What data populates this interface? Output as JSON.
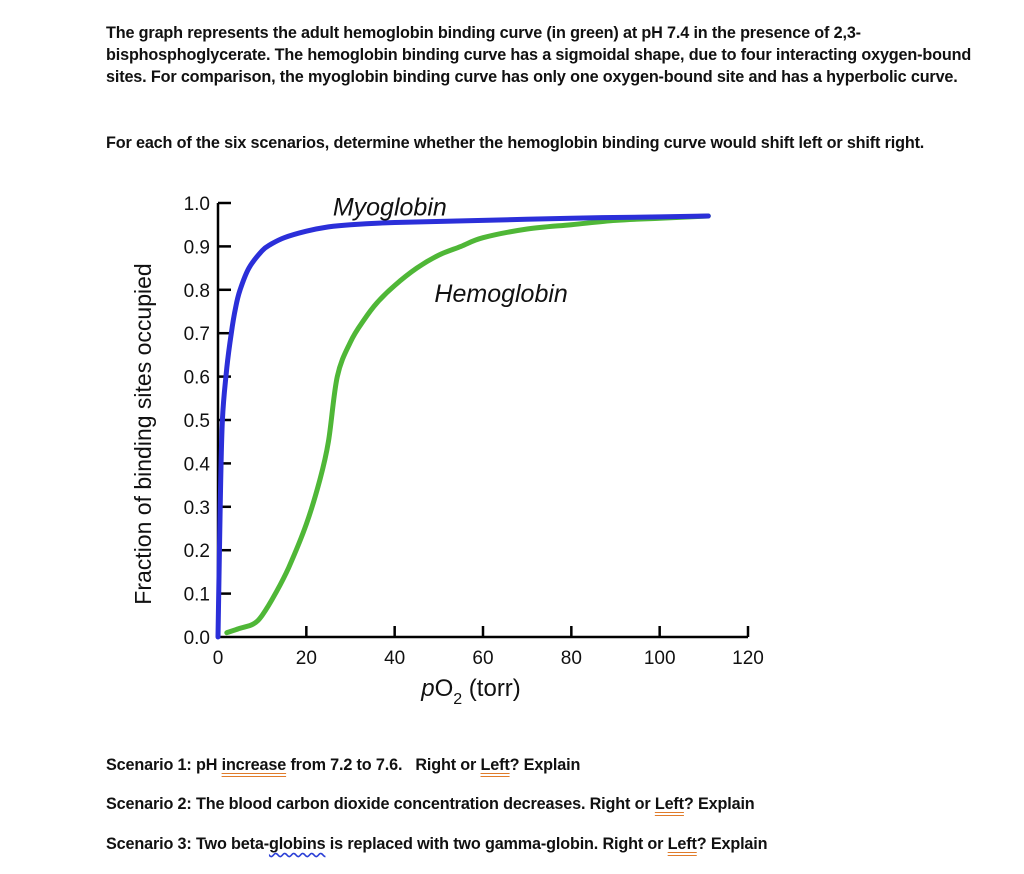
{
  "intro": {
    "text": "The graph represents the adult hemoglobin binding curve (in green) at pH 7.4 in the presence of 2,3-bisphosphoglycerate. The hemoglobin binding curve has a sigmoidal shape, due to four interacting oxygen-bound sites. For comparison, the myoglobin binding curve has only one oxygen-bound site and has a hyperbolic curve."
  },
  "instruction": {
    "text": "For each of the six scenarios, determine whether the hemoglobin binding curve would shift left or shift right."
  },
  "chart_data": {
    "type": "line",
    "title": "",
    "xlabel_italic": "p",
    "xlabel_main": "O",
    "xlabel_sub": "2",
    "xlabel_rest": " (torr)",
    "xlabel": "pO2 (torr)",
    "ylabel": "Fraction of binding sites occupied",
    "xlim": [
      0,
      120
    ],
    "ylim": [
      0.0,
      1.0
    ],
    "x_ticks": [
      "0",
      "20",
      "40",
      "60",
      "80",
      "100",
      "120"
    ],
    "y_ticks": [
      "0.0",
      "0.1",
      "0.2",
      "0.3",
      "0.4",
      "0.5",
      "0.6",
      "0.7",
      "0.8",
      "0.9",
      "1.0"
    ],
    "grid": false,
    "legend": "inline labels",
    "series": [
      {
        "name": "Myoglobin",
        "color": "#2b2fd9",
        "label_pos": [
          26,
          0.99
        ],
        "x": [
          0,
          0.5,
          1,
          2,
          3,
          4,
          5,
          7,
          10,
          12,
          15,
          20,
          25,
          30,
          40,
          60,
          80,
          100,
          111
        ],
        "y": [
          0,
          0.3,
          0.5,
          0.62,
          0.7,
          0.76,
          0.8,
          0.85,
          0.89,
          0.905,
          0.92,
          0.935,
          0.945,
          0.95,
          0.955,
          0.96,
          0.965,
          0.968,
          0.97
        ]
      },
      {
        "name": "Hemoglobin",
        "color": "#4fb737",
        "label_pos": [
          49,
          0.79
        ],
        "x": [
          2,
          5,
          8,
          10,
          13,
          16,
          20,
          23,
          25,
          27,
          30,
          33,
          36,
          40,
          45,
          50,
          55,
          60,
          70,
          80,
          90,
          100,
          111
        ],
        "y": [
          0.01,
          0.02,
          0.03,
          0.05,
          0.1,
          0.16,
          0.26,
          0.36,
          0.45,
          0.6,
          0.68,
          0.73,
          0.77,
          0.81,
          0.85,
          0.88,
          0.9,
          0.92,
          0.94,
          0.95,
          0.96,
          0.965,
          0.97
        ]
      }
    ]
  },
  "scenarios": [
    {
      "parts": [
        {
          "text": "Scenario 1: pH ",
          "mark": ""
        },
        {
          "text": "increase",
          "mark": "spell-orange"
        },
        {
          "text": " from 7.2 to 7.6.   Right or ",
          "mark": ""
        },
        {
          "text": "Left",
          "mark": "spell-orange"
        },
        {
          "text": "? Explain",
          "mark": ""
        }
      ]
    },
    {
      "parts": [
        {
          "text": "Scenario 2: The blood carbon dioxide concentration decreases. Right or ",
          "mark": ""
        },
        {
          "text": "Left",
          "mark": "spell-orange"
        },
        {
          "text": "? Explain",
          "mark": ""
        }
      ]
    },
    {
      "parts": [
        {
          "text": "Scenario 3: Two beta-",
          "mark": ""
        },
        {
          "text": "globins",
          "mark": "spell-blue"
        },
        {
          "text": " is replaced with two gamma-globin. Right or ",
          "mark": ""
        },
        {
          "text": "Left",
          "mark": "spell-orange"
        },
        {
          "text": "? Explain",
          "mark": ""
        }
      ]
    }
  ]
}
